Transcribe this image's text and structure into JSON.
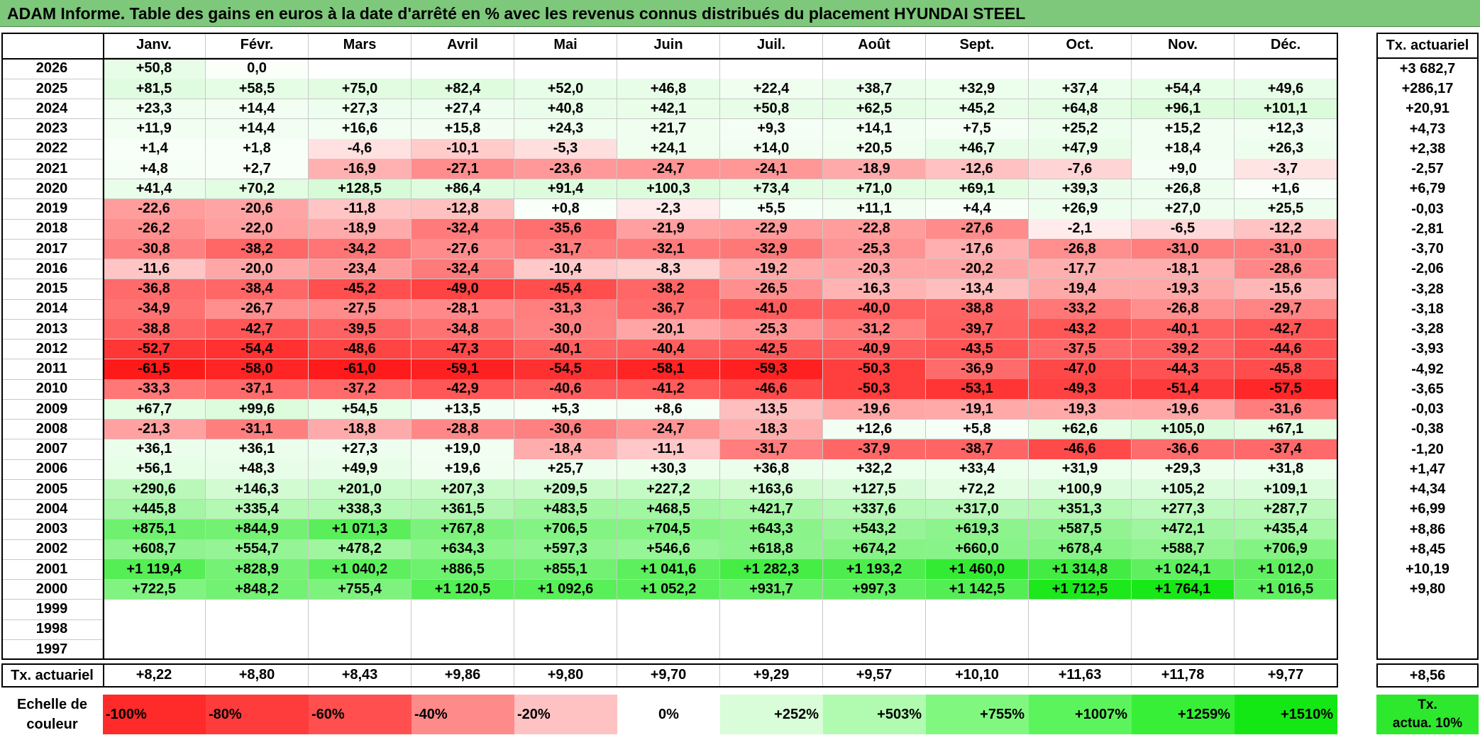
{
  "title": "ADAM Informe. Table des gains en euros à la date d'arrêté en % avec les revenus connus distribués du placement HYUNDAI STEEL",
  "months": [
    "Janv.",
    "Févr.",
    "Mars",
    "Avril",
    "Mai",
    "Juin",
    "Juil.",
    "Août",
    "Sept.",
    "Oct.",
    "Nov.",
    "Déc."
  ],
  "tx_header": "Tx. actuariel",
  "rows": [
    {
      "year": "2026",
      "values": [
        "+50,8",
        "0,0",
        "",
        "",
        "",
        "",
        "",
        "",
        "",
        "",
        "",
        ""
      ],
      "tx": "+3 682,7"
    },
    {
      "year": "2025",
      "values": [
        "+81,5",
        "+58,5",
        "+75,0",
        "+82,4",
        "+52,0",
        "+46,8",
        "+22,4",
        "+38,7",
        "+32,9",
        "+37,4",
        "+54,4",
        "+49,6"
      ],
      "tx": "+286,17"
    },
    {
      "year": "2024",
      "values": [
        "+23,3",
        "+14,4",
        "+27,3",
        "+27,4",
        "+40,8",
        "+42,1",
        "+50,8",
        "+62,5",
        "+45,2",
        "+64,8",
        "+96,1",
        "+101,1"
      ],
      "tx": "+20,91"
    },
    {
      "year": "2023",
      "values": [
        "+11,9",
        "+14,4",
        "+16,6",
        "+15,8",
        "+24,3",
        "+21,7",
        "+9,3",
        "+14,1",
        "+7,5",
        "+25,2",
        "+15,2",
        "+12,3"
      ],
      "tx": "+4,73"
    },
    {
      "year": "2022",
      "values": [
        "+1,4",
        "+1,8",
        "-4,6",
        "-10,1",
        "-5,3",
        "+24,1",
        "+14,0",
        "+20,5",
        "+46,7",
        "+47,9",
        "+18,4",
        "+26,3"
      ],
      "tx": "+2,38"
    },
    {
      "year": "2021",
      "values": [
        "+4,8",
        "+2,7",
        "-16,9",
        "-27,1",
        "-23,6",
        "-24,7",
        "-24,1",
        "-18,9",
        "-12,6",
        "-7,6",
        "+9,0",
        "-3,7"
      ],
      "tx": "-2,57"
    },
    {
      "year": "2020",
      "values": [
        "+41,4",
        "+70,2",
        "+128,5",
        "+86,4",
        "+91,4",
        "+100,3",
        "+73,4",
        "+71,0",
        "+69,1",
        "+39,3",
        "+26,8",
        "+1,6"
      ],
      "tx": "+6,79"
    },
    {
      "year": "2019",
      "values": [
        "-22,6",
        "-20,6",
        "-11,8",
        "-12,8",
        "+0,8",
        "-2,3",
        "+5,5",
        "+11,1",
        "+4,4",
        "+26,9",
        "+27,0",
        "+25,5"
      ],
      "tx": "-0,03"
    },
    {
      "year": "2018",
      "values": [
        "-26,2",
        "-22,0",
        "-18,9",
        "-32,4",
        "-35,6",
        "-21,9",
        "-22,9",
        "-22,8",
        "-27,6",
        "-2,1",
        "-6,5",
        "-12,2"
      ],
      "tx": "-2,81"
    },
    {
      "year": "2017",
      "values": [
        "-30,8",
        "-38,2",
        "-34,2",
        "-27,6",
        "-31,7",
        "-32,1",
        "-32,9",
        "-25,3",
        "-17,6",
        "-26,8",
        "-31,0",
        "-31,0"
      ],
      "tx": "-3,70"
    },
    {
      "year": "2016",
      "values": [
        "-11,6",
        "-20,0",
        "-23,4",
        "-32,4",
        "-10,4",
        "-8,3",
        "-19,2",
        "-20,3",
        "-20,2",
        "-17,7",
        "-18,1",
        "-28,6"
      ],
      "tx": "-2,06"
    },
    {
      "year": "2015",
      "values": [
        "-36,8",
        "-38,4",
        "-45,2",
        "-49,0",
        "-45,4",
        "-38,2",
        "-26,5",
        "-16,3",
        "-13,4",
        "-19,4",
        "-19,3",
        "-15,6"
      ],
      "tx": "-3,28"
    },
    {
      "year": "2014",
      "values": [
        "-34,9",
        "-26,7",
        "-27,5",
        "-28,1",
        "-31,3",
        "-36,7",
        "-41,0",
        "-40,0",
        "-38,8",
        "-33,2",
        "-26,8",
        "-29,7"
      ],
      "tx": "-3,18"
    },
    {
      "year": "2013",
      "values": [
        "-38,8",
        "-42,7",
        "-39,5",
        "-34,8",
        "-30,0",
        "-20,1",
        "-25,3",
        "-31,2",
        "-39,7",
        "-43,2",
        "-40,1",
        "-42,7"
      ],
      "tx": "-3,28"
    },
    {
      "year": "2012",
      "values": [
        "-52,7",
        "-54,4",
        "-48,6",
        "-47,3",
        "-40,1",
        "-40,4",
        "-42,5",
        "-40,9",
        "-43,5",
        "-37,5",
        "-39,2",
        "-44,6"
      ],
      "tx": "-3,93"
    },
    {
      "year": "2011",
      "values": [
        "-61,5",
        "-58,0",
        "-61,0",
        "-59,1",
        "-54,5",
        "-58,1",
        "-59,3",
        "-50,3",
        "-36,9",
        "-47,0",
        "-44,3",
        "-45,8"
      ],
      "tx": "-4,92"
    },
    {
      "year": "2010",
      "values": [
        "-33,3",
        "-37,1",
        "-37,2",
        "-42,9",
        "-40,6",
        "-41,2",
        "-46,6",
        "-50,3",
        "-53,1",
        "-49,3",
        "-51,4",
        "-57,5"
      ],
      "tx": "-3,65"
    },
    {
      "year": "2009",
      "values": [
        "+67,7",
        "+99,6",
        "+54,5",
        "+13,5",
        "+5,3",
        "+8,6",
        "-13,5",
        "-19,6",
        "-19,1",
        "-19,3",
        "-19,6",
        "-31,6"
      ],
      "tx": "-0,03"
    },
    {
      "year": "2008",
      "values": [
        "-21,3",
        "-31,1",
        "-18,8",
        "-28,8",
        "-30,6",
        "-24,7",
        "-18,3",
        "+12,6",
        "+5,8",
        "+62,6",
        "+105,0",
        "+67,1"
      ],
      "tx": "-0,38"
    },
    {
      "year": "2007",
      "values": [
        "+36,1",
        "+36,1",
        "+27,3",
        "+19,0",
        "-18,4",
        "-11,1",
        "-31,7",
        "-37,9",
        "-38,7",
        "-46,6",
        "-36,6",
        "-37,4"
      ],
      "tx": "-1,20"
    },
    {
      "year": "2006",
      "values": [
        "+56,1",
        "+48,3",
        "+49,9",
        "+19,6",
        "+25,7",
        "+30,3",
        "+36,8",
        "+32,2",
        "+33,4",
        "+31,9",
        "+29,3",
        "+31,8"
      ],
      "tx": "+1,47"
    },
    {
      "year": "2005",
      "values": [
        "+290,6",
        "+146,3",
        "+201,0",
        "+207,3",
        "+209,5",
        "+227,2",
        "+163,6",
        "+127,5",
        "+72,2",
        "+100,9",
        "+105,2",
        "+109,1"
      ],
      "tx": "+4,34"
    },
    {
      "year": "2004",
      "values": [
        "+445,8",
        "+335,4",
        "+338,3",
        "+361,5",
        "+483,5",
        "+468,5",
        "+421,7",
        "+337,6",
        "+317,0",
        "+351,3",
        "+277,3",
        "+287,7"
      ],
      "tx": "+6,99"
    },
    {
      "year": "2003",
      "values": [
        "+875,1",
        "+844,9",
        "+1 071,3",
        "+767,8",
        "+706,5",
        "+704,5",
        "+643,3",
        "+543,2",
        "+619,3",
        "+587,5",
        "+472,1",
        "+435,4"
      ],
      "tx": "+8,86"
    },
    {
      "year": "2002",
      "values": [
        "+608,7",
        "+554,7",
        "+478,2",
        "+634,3",
        "+597,3",
        "+546,6",
        "+618,8",
        "+674,2",
        "+660,0",
        "+678,4",
        "+588,7",
        "+706,9"
      ],
      "tx": "+8,45"
    },
    {
      "year": "2001",
      "values": [
        "+1 119,4",
        "+828,9",
        "+1 040,2",
        "+886,5",
        "+855,1",
        "+1 041,6",
        "+1 282,3",
        "+1 193,2",
        "+1 460,0",
        "+1 314,8",
        "+1 024,1",
        "+1 012,0"
      ],
      "tx": "+10,19"
    },
    {
      "year": "2000",
      "values": [
        "+722,5",
        "+848,2",
        "+755,4",
        "+1 120,5",
        "+1 092,6",
        "+1 052,2",
        "+931,7",
        "+997,3",
        "+1 142,5",
        "+1 712,5",
        "+1 764,1",
        "+1 016,5"
      ],
      "tx": "+9,80"
    },
    {
      "year": "1999",
      "values": [
        "",
        "",
        "",
        "",
        "",
        "",
        "",
        "",
        "",
        "",
        "",
        ""
      ],
      "tx": ""
    },
    {
      "year": "1998",
      "values": [
        "",
        "",
        "",
        "",
        "",
        "",
        "",
        "",
        "",
        "",
        "",
        ""
      ],
      "tx": ""
    },
    {
      "year": "1997",
      "values": [
        "",
        "",
        "",
        "",
        "",
        "",
        "",
        "",
        "",
        "",
        "",
        ""
      ],
      "tx": ""
    }
  ],
  "footer": {
    "label": "Tx. actuariel",
    "values": [
      "+8,22",
      "+8,80",
      "+8,43",
      "+9,86",
      "+9,80",
      "+9,70",
      "+9,29",
      "+9,57",
      "+10,10",
      "+11,63",
      "+11,78",
      "+9,77"
    ],
    "tx": "+8,56"
  },
  "legend": {
    "label_line1": "Echelle de",
    "label_line2": "couleur",
    "steps": [
      {
        "text": "-100%",
        "color": "#ff2a2a"
      },
      {
        "text": "-80%",
        "color": "#ff3c3c"
      },
      {
        "text": "-60%",
        "color": "#ff4f4f"
      },
      {
        "text": "-40%",
        "color": "#ff8a8a"
      },
      {
        "text": "-20%",
        "color": "#ffc2c2"
      },
      {
        "text": "0%",
        "color": "#ffffff"
      },
      {
        "text": "+252%",
        "color": "#d8fdd8"
      },
      {
        "text": "+503%",
        "color": "#b0fbb0"
      },
      {
        "text": "+755%",
        "color": "#80f880"
      },
      {
        "text": "+1007%",
        "color": "#5cf45c"
      },
      {
        "text": "+1259%",
        "color": "#38ef38"
      },
      {
        "text": "+1510%",
        "color": "#14e814"
      }
    ],
    "tx_line1": "Tx.",
    "tx_line2": "actua. 10%"
  }
}
